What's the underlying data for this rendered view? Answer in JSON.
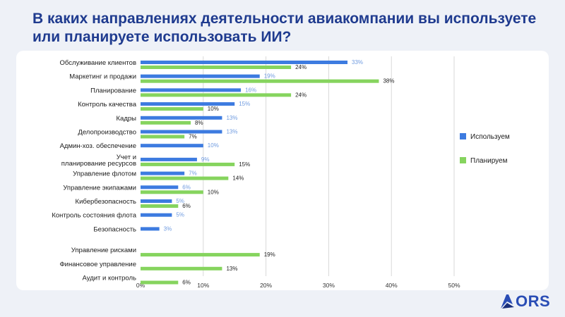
{
  "title": "В каких направлениях деятельности авиакомпании вы используете или планируете использовать ИИ?",
  "logo_text": "ORS",
  "colors": {
    "uses": "#3d7be0",
    "plans": "#86d45e",
    "title": "#1f3b8f",
    "grid": "#d9d9d9",
    "uses_label": "#6f9be0"
  },
  "chart_data": {
    "type": "bar",
    "orientation": "horizontal",
    "categories": [
      "Обслуживание клиентов",
      "Маркетинг и продажи",
      "Планирование",
      "Контроль качества",
      "Кадры",
      "Делопроизводство",
      "Админ-хоз. обеспечение",
      "Учет и планирование ресурсов",
      "Управление флотом",
      "Управление экипажами",
      "Кибербезопасность",
      "Контроль состояния флота",
      "Безопасность",
      "Управление рисками",
      "Финансовое управление",
      "Аудит и контроль"
    ],
    "series": [
      {
        "name": "Используем",
        "color": "#3d7be0",
        "values": [
          33,
          19,
          16,
          15,
          13,
          13,
          10,
          9,
          7,
          6,
          5,
          5,
          3,
          null,
          null,
          null
        ]
      },
      {
        "name": "Планируем",
        "color": "#86d45e",
        "values": [
          24,
          38,
          24,
          10,
          8,
          7,
          null,
          15,
          14,
          10,
          6,
          null,
          null,
          19,
          13,
          6
        ]
      }
    ],
    "x_ticks": [
      "0%",
      "10%",
      "20%",
      "30%",
      "40%",
      "50%"
    ],
    "xlim": [
      0,
      50
    ],
    "grid": true,
    "legend_position": "right"
  }
}
